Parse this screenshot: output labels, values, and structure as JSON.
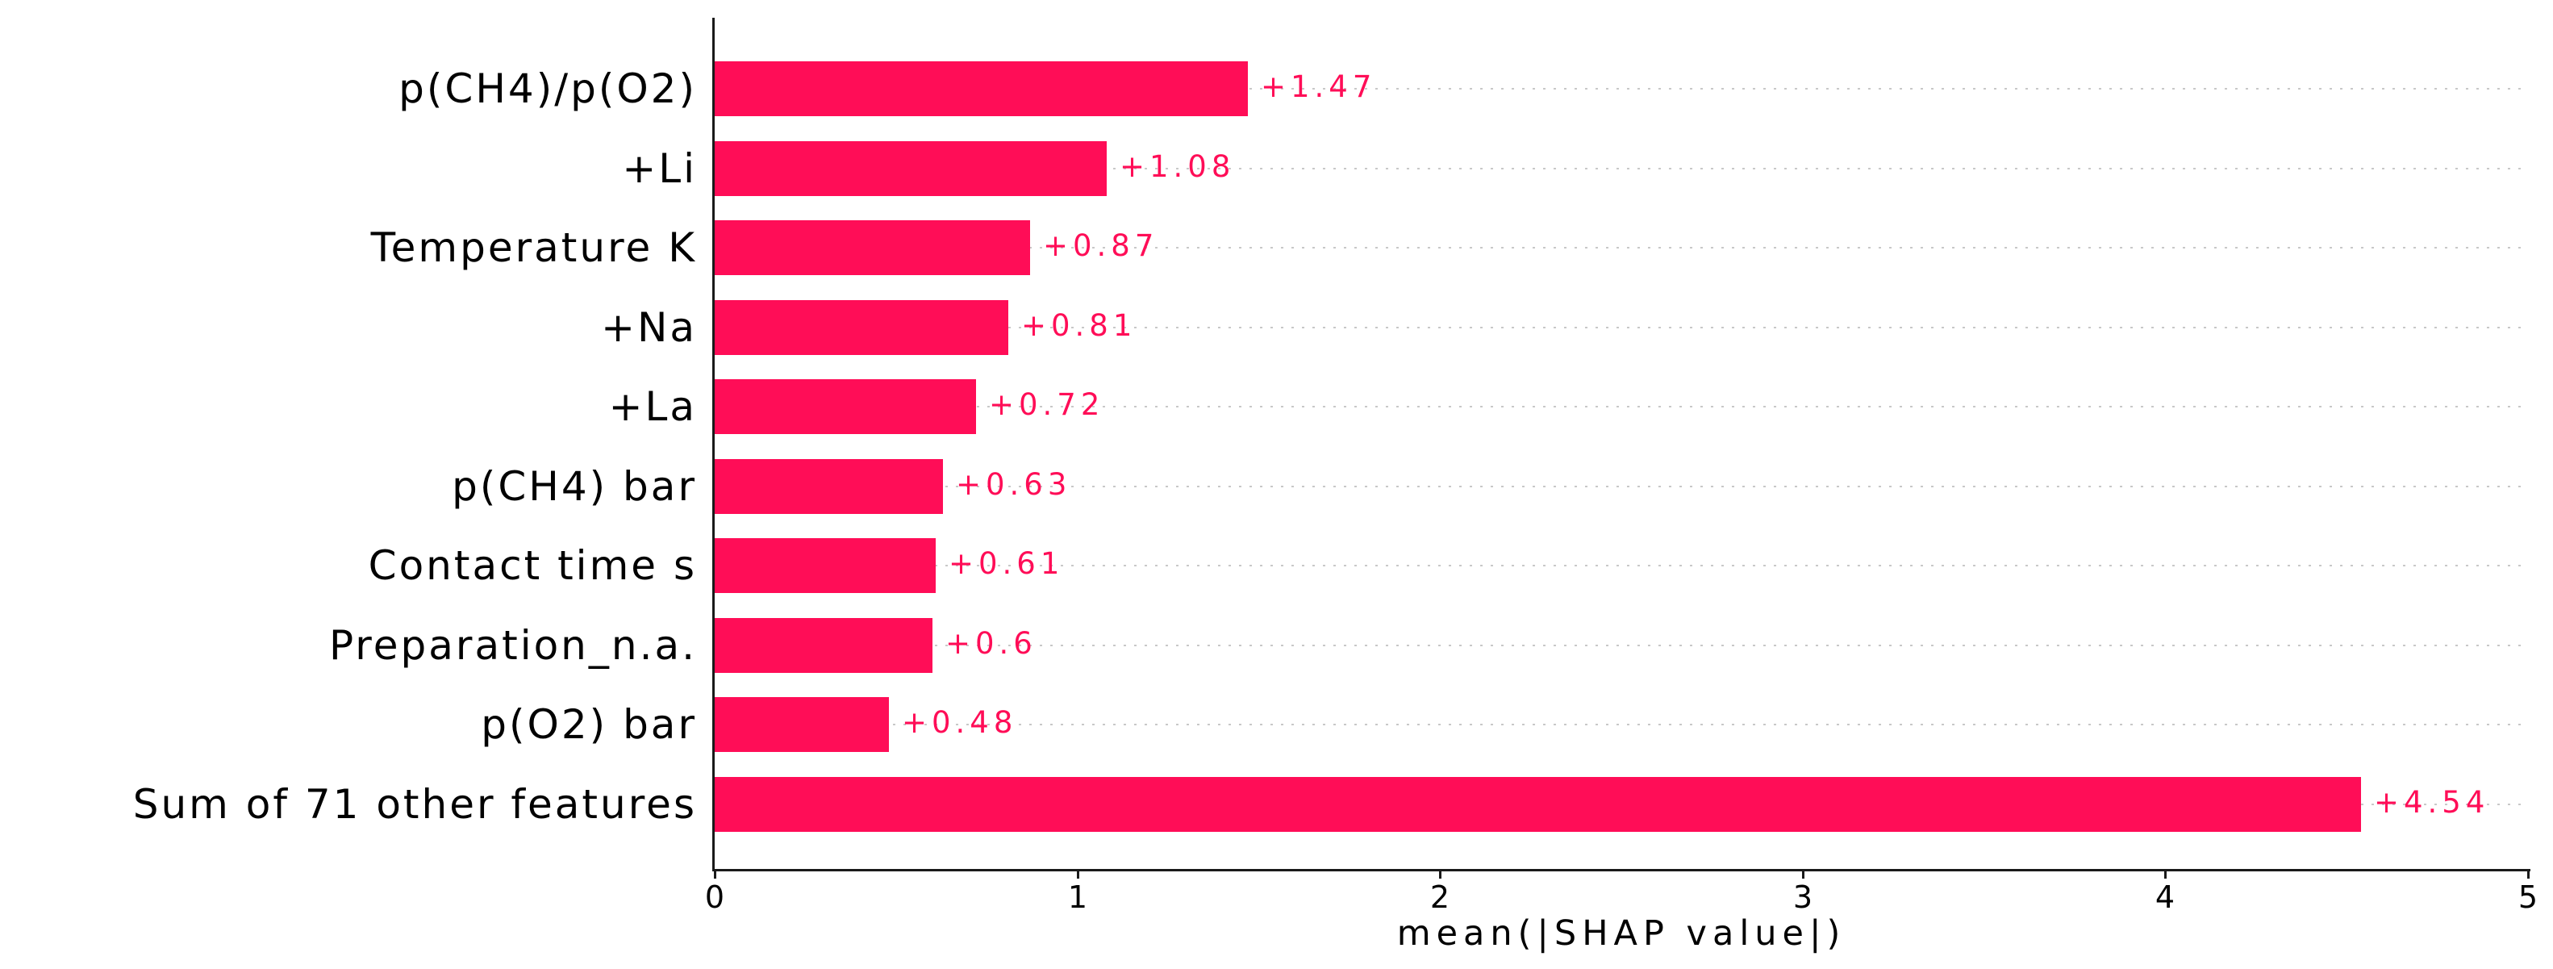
{
  "chart_data": {
    "type": "bar",
    "orientation": "horizontal",
    "title": "",
    "categories": [
      "p(CH4)/p(O2)",
      "+Li",
      "Temperature K",
      "+Na",
      "+La",
      "p(CH4) bar",
      "Contact time s",
      "Preparation_n.a.",
      "p(O2) bar",
      "Sum of 71 other features"
    ],
    "values": [
      1.47,
      1.08,
      0.87,
      0.81,
      0.72,
      0.63,
      0.61,
      0.6,
      0.48,
      4.54
    ],
    "value_labels": [
      "+1.47",
      "+1.08",
      "+0.87",
      "+0.81",
      "+0.72",
      "+0.63",
      "+0.61",
      "+0.6",
      "+0.48",
      "+4.54"
    ],
    "xlabel": "mean(|SHAP value|)",
    "xticks": [
      "0",
      "1",
      "2",
      "3",
      "4",
      "5"
    ],
    "xlim": [
      0,
      5
    ],
    "grid": "dotted horizontal line behind each bar row",
    "legend": "none",
    "colors": {
      "bar": "#ff0d57",
      "value_label": "#ff0d57",
      "gridline": "#c8c8c8",
      "axis": "#1a1a1a",
      "text": "#000000",
      "background": "#ffffff"
    }
  }
}
